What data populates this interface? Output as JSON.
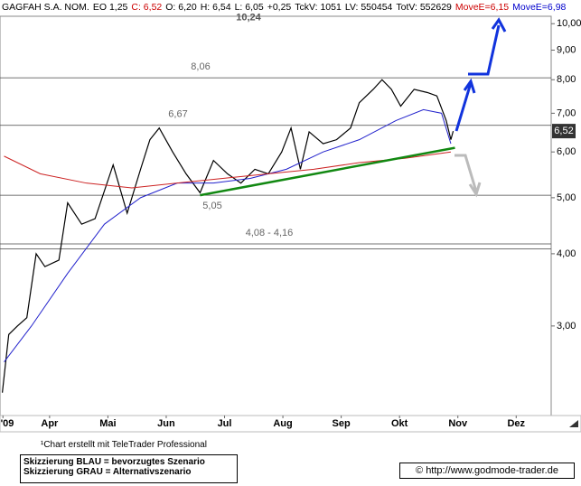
{
  "header": {
    "items": [
      {
        "text": "GAGFAH S.A. NOM.",
        "color": "#000000"
      },
      {
        "text": "EO 1,25",
        "color": "#000000"
      },
      {
        "text": "C: 6,52",
        "color": "#cc0000"
      },
      {
        "text": "O: 6,20",
        "color": "#000000"
      },
      {
        "text": "H: 6,54",
        "color": "#000000"
      },
      {
        "text": "L: 6,05",
        "color": "#000000"
      },
      {
        "text": "+0,25",
        "color": "#000000"
      },
      {
        "text": "TckV: 1051",
        "color": "#000000"
      },
      {
        "text": "LV: 550454",
        "color": "#000000"
      },
      {
        "text": "TotV: 552629",
        "color": "#000000"
      },
      {
        "text": "MoveE=6,15",
        "color": "#cc0000"
      },
      {
        "text": "MoveE=6,98",
        "color": "#0000cc"
      }
    ]
  },
  "chart_data": {
    "type": "line",
    "log_y": true,
    "xlim": [
      3.15,
      12.6
    ],
    "ylim": [
      2.1,
      10.3
    ],
    "xticks": [
      {
        "value": 3.2,
        "label": "'09"
      },
      {
        "value": 4,
        "label": "Apr"
      },
      {
        "value": 5,
        "label": "Mai"
      },
      {
        "value": 6,
        "label": "Jun"
      },
      {
        "value": 7,
        "label": "Jul"
      },
      {
        "value": 8,
        "label": "Aug"
      },
      {
        "value": 9,
        "label": "Sep"
      },
      {
        "value": 10,
        "label": "Okt"
      },
      {
        "value": 11,
        "label": "Nov"
      },
      {
        "value": 12,
        "label": "Dez"
      }
    ],
    "yticks": [
      {
        "value": 3,
        "label": "3,00"
      },
      {
        "value": 4,
        "label": "4,00"
      },
      {
        "value": 5,
        "label": "5,00"
      },
      {
        "value": 6,
        "label": "6,00"
      },
      {
        "value": 7,
        "label": "7,00"
      },
      {
        "value": 8,
        "label": "8,00"
      },
      {
        "value": 9,
        "label": "9,00"
      },
      {
        "value": 10,
        "label": "10,00"
      }
    ],
    "series": [
      {
        "color": "#000000",
        "x": [
          3.19,
          3.3,
          3.45,
          3.61,
          3.77,
          3.92,
          4.16,
          4.31,
          4.55,
          4.78,
          5.09,
          5.33,
          5.56,
          5.72,
          5.88,
          6.11,
          6.34,
          6.58,
          6.81,
          7.05,
          7.28,
          7.52,
          7.75,
          7.98,
          8.14,
          8.3,
          8.45,
          8.69,
          8.92,
          9.16,
          9.31,
          9.55,
          9.7,
          9.86,
          10.02,
          10.25,
          10.48,
          10.64,
          10.8,
          10.88,
          10.92
        ],
        "values": [
          2.3,
          2.9,
          3.0,
          3.1,
          4.0,
          3.8,
          3.9,
          4.9,
          4.5,
          4.6,
          5.7,
          4.7,
          5.6,
          6.3,
          6.6,
          6.0,
          5.5,
          5.1,
          5.8,
          5.5,
          5.3,
          5.6,
          5.5,
          6.0,
          6.6,
          5.6,
          6.5,
          6.2,
          6.3,
          6.6,
          7.3,
          7.7,
          8.0,
          7.7,
          7.2,
          7.7,
          7.6,
          7.5,
          6.8,
          6.3,
          6.52
        ]
      },
      {
        "color": "#2222cc",
        "x": [
          3.22,
          3.69,
          4.31,
          4.94,
          5.56,
          6.19,
          6.81,
          7.44,
          8.06,
          8.69,
          9.31,
          9.94,
          10.41,
          10.72,
          10.88
        ],
        "values": [
          2.6,
          3.0,
          3.7,
          4.5,
          5.0,
          5.3,
          5.3,
          5.4,
          5.6,
          6.0,
          6.3,
          6.8,
          7.1,
          7.0,
          6.2
        ]
      },
      {
        "color": "#cc2222",
        "x": [
          3.22,
          3.84,
          4.63,
          5.41,
          6.19,
          6.97,
          7.75,
          8.53,
          9.31,
          10.09,
          10.88
        ],
        "values": [
          5.9,
          5.5,
          5.3,
          5.2,
          5.3,
          5.4,
          5.5,
          5.6,
          5.75,
          5.85,
          6.0
        ]
      },
      {
        "color": "#118811",
        "x": [
          6.58,
          10.95
        ],
        "values": [
          5.05,
          6.1
        ]
      }
    ],
    "levels": [
      {
        "value": 10.24,
        "label": "10,24",
        "line": false
      },
      {
        "value": 8.06,
        "label": "8,06",
        "line": true
      },
      {
        "value": 6.67,
        "label": "6,67",
        "line": true
      },
      {
        "value": 5.05,
        "label": "5,05",
        "line": true
      },
      {
        "value": 4.16,
        "label": "4,08 - 4,16",
        "line": true
      },
      {
        "value": 4.08,
        "line": true
      }
    ],
    "last_price": {
      "value": 6.52,
      "label": "6,52"
    }
  },
  "footer": {
    "credit": "¹Chart erstellt mit TeleTrader Professional",
    "legend": [
      "Skizzierung BLAU = bevorzugtes Szenario",
      "Skizzierung GRAU = Alternativszenario"
    ],
    "url": "© http://www.godmode-trader.de"
  }
}
